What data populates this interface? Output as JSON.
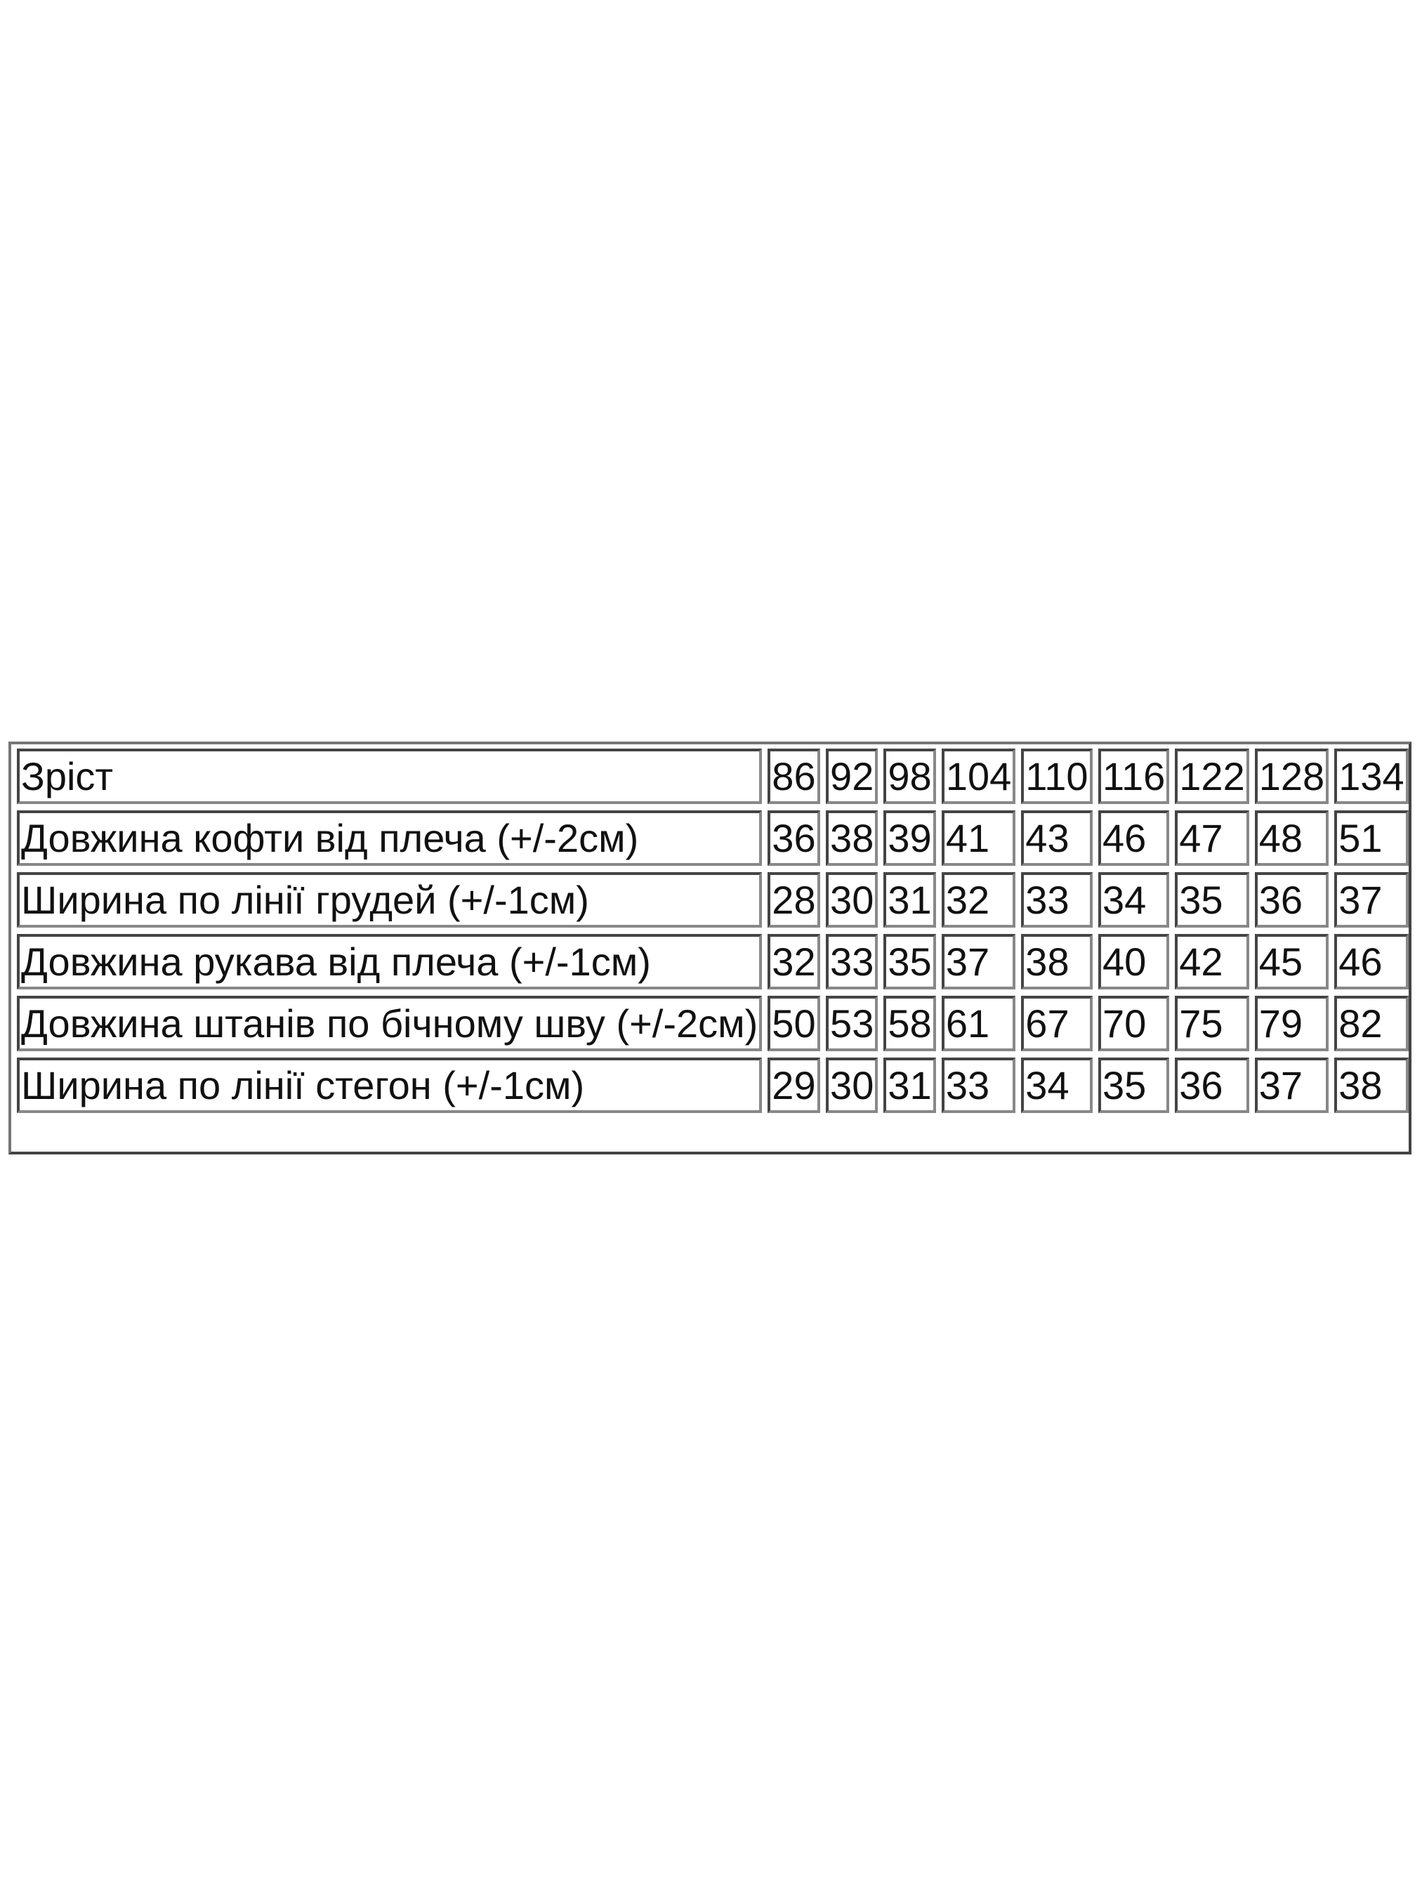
{
  "size_table": {
    "header": {
      "label": "Зріст",
      "values": [
        "86",
        "92",
        "98",
        "104",
        "110",
        "116",
        "122",
        "128",
        "134"
      ]
    },
    "rows": [
      {
        "label": "Довжина кофти від плеча (+/-2см)",
        "values": [
          "36",
          "38",
          "39",
          "41",
          "43",
          "46",
          "47",
          "48",
          "51"
        ]
      },
      {
        "label": "Ширина по лінії грудей (+/-1см)",
        "values": [
          "28",
          "30",
          "31",
          "32",
          "33",
          "34",
          "35",
          "36",
          "37"
        ]
      },
      {
        "label": "Довжина рукава від плеча (+/-1см)",
        "values": [
          "32",
          "33",
          "35",
          "37",
          "38",
          "40",
          "42",
          "45",
          "46"
        ]
      },
      {
        "label": "Довжина штанів по бічному шву (+/-2см)",
        "values": [
          "50",
          "53",
          "58",
          "61",
          "67",
          "70",
          "75",
          "79",
          "82"
        ]
      },
      {
        "label": "Ширина по лінії стегон (+/-1см)",
        "values": [
          "29",
          "30",
          "31",
          "33",
          "34",
          "35",
          "36",
          "37",
          "38"
        ]
      }
    ]
  }
}
